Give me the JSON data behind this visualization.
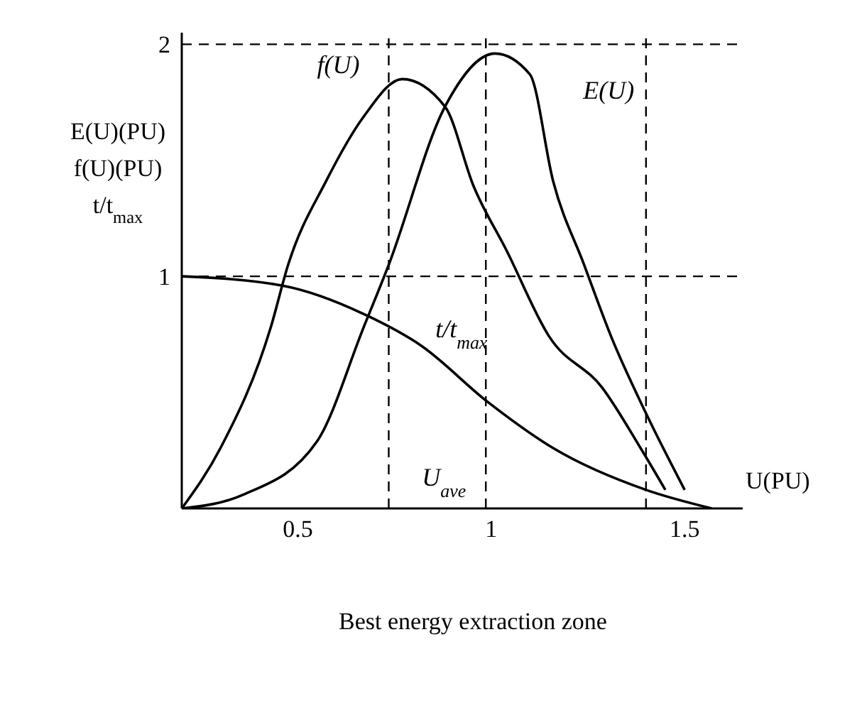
{
  "chart_data": {
    "type": "line",
    "xlabel": "U(PU)",
    "ylabel": "E(U)(PU)\nf(U)(PU)\nt/t$_{max}$",
    "xlim": [
      0.2,
      1.65
    ],
    "xticks": [
      0.5,
      1,
      1.5
    ],
    "ylim": [
      0,
      2.05
    ],
    "yticks": [
      1,
      2
    ],
    "grid": "y",
    "line_style": "solid",
    "marker": "none",
    "series": [
      {
        "name": "f(U)",
        "color": "#000000",
        "x": [
          0.2,
          0.3,
          0.43,
          0.475,
          0.573,
          0.671,
          0.77,
          0.881,
          0.954,
          1.04,
          1.15,
          1.287,
          1.386,
          1.45
        ],
        "values": [
          0,
          0.26,
          0.78,
          1.05,
          1.41,
          1.69,
          1.85,
          1.73,
          1.39,
          1.11,
          0.74,
          0.52,
          0.26,
          0.08
        ]
      },
      {
        "name": "E(U)",
        "color": "#000000",
        "x": [
          0.2,
          0.36,
          0.55,
          0.67,
          0.735,
          0.88,
          1.01,
          1.1,
          1.16,
          1.24,
          1.31,
          1.4,
          1.5
        ],
        "values": [
          0,
          0.06,
          0.29,
          0.78,
          1.05,
          1.73,
          1.96,
          1.87,
          1.41,
          1.05,
          0.74,
          0.41,
          0.08
        ]
      },
      {
        "name": "t/t$_{max}$",
        "color": "#000000",
        "x": [
          0.2,
          0.46,
          0.68,
          0.82,
          0.99,
          1.16,
          1.4,
          1.57
        ],
        "values": [
          1,
          0.96,
          0.83,
          0.7,
          0.46,
          0.26,
          0.08,
          0
        ]
      }
    ],
    "ref_lines": [
      {
        "axis": "x",
        "value": 0.735,
        "line_style": "dashed"
      },
      {
        "axis": "x",
        "value": 0.986,
        "label": "U$_{ave}$",
        "line_style": "dashed"
      },
      {
        "axis": "x",
        "value": 1.4,
        "line_style": "dashed"
      }
    ],
    "annotations": [
      "Best energy extraction zone"
    ]
  }
}
